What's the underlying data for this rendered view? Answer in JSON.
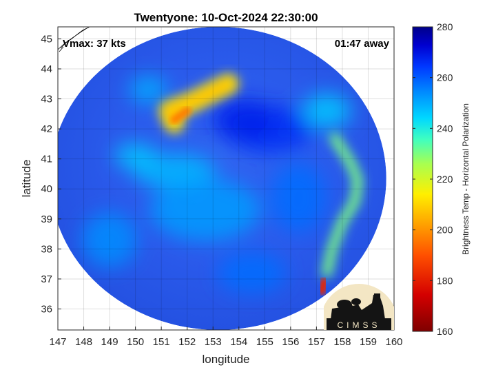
{
  "chart_data": {
    "type": "heatmap",
    "title": "Twentyone: 10-Oct-2024 22:30:00",
    "xlabel": "longitude",
    "ylabel": "latitude",
    "xlim": [
      147,
      160
    ],
    "ylim": [
      35.3,
      45.4
    ],
    "x_ticks": [
      "147",
      "148",
      "149",
      "150",
      "151",
      "152",
      "153",
      "154",
      "155",
      "156",
      "157",
      "158",
      "159",
      "160"
    ],
    "y_ticks": [
      "36",
      "37",
      "38",
      "39",
      "40",
      "41",
      "42",
      "43",
      "44",
      "45"
    ],
    "grid": true,
    "annotations": {
      "vmax": "Vmax: 37 kts",
      "time_away": "01:47 away"
    },
    "colorbar": {
      "label": "Brightness Temp - Horizontal Polarization",
      "min": 160,
      "max": 280,
      "ticks": [
        "160",
        "180",
        "200",
        "220",
        "240",
        "260",
        "280"
      ]
    },
    "swath": {
      "center": [
        153.2,
        40.35
      ],
      "radius_lon": 6.5,
      "radius_lat": 5.05
    },
    "cold_features": [
      {
        "name": "comma cloud band",
        "points": [
          [
            151.5,
            42.2
          ],
          [
            151.3,
            42.6
          ],
          [
            152.2,
            42.9
          ],
          [
            152.9,
            43.2
          ],
          [
            153.6,
            43.5
          ]
        ],
        "value": 213
      },
      {
        "name": "cold core",
        "points": [
          [
            151.5,
            42.3
          ],
          [
            152.0,
            42.6
          ]
        ],
        "value": 197
      },
      {
        "name": "eastern edge convection",
        "points": [
          [
            157.7,
            41.7
          ],
          [
            158.3,
            40.9
          ],
          [
            158.6,
            40.3
          ],
          [
            158.5,
            39.6
          ],
          [
            158.0,
            38.9
          ],
          [
            157.6,
            38.0
          ],
          [
            157.4,
            37.2
          ]
        ],
        "value": 230
      },
      {
        "name": "southeast cell",
        "points": [
          [
            157.2,
            36.6
          ],
          [
            157.3,
            36.9
          ]
        ],
        "value": 182
      }
    ],
    "logo": "CIMSS"
  }
}
